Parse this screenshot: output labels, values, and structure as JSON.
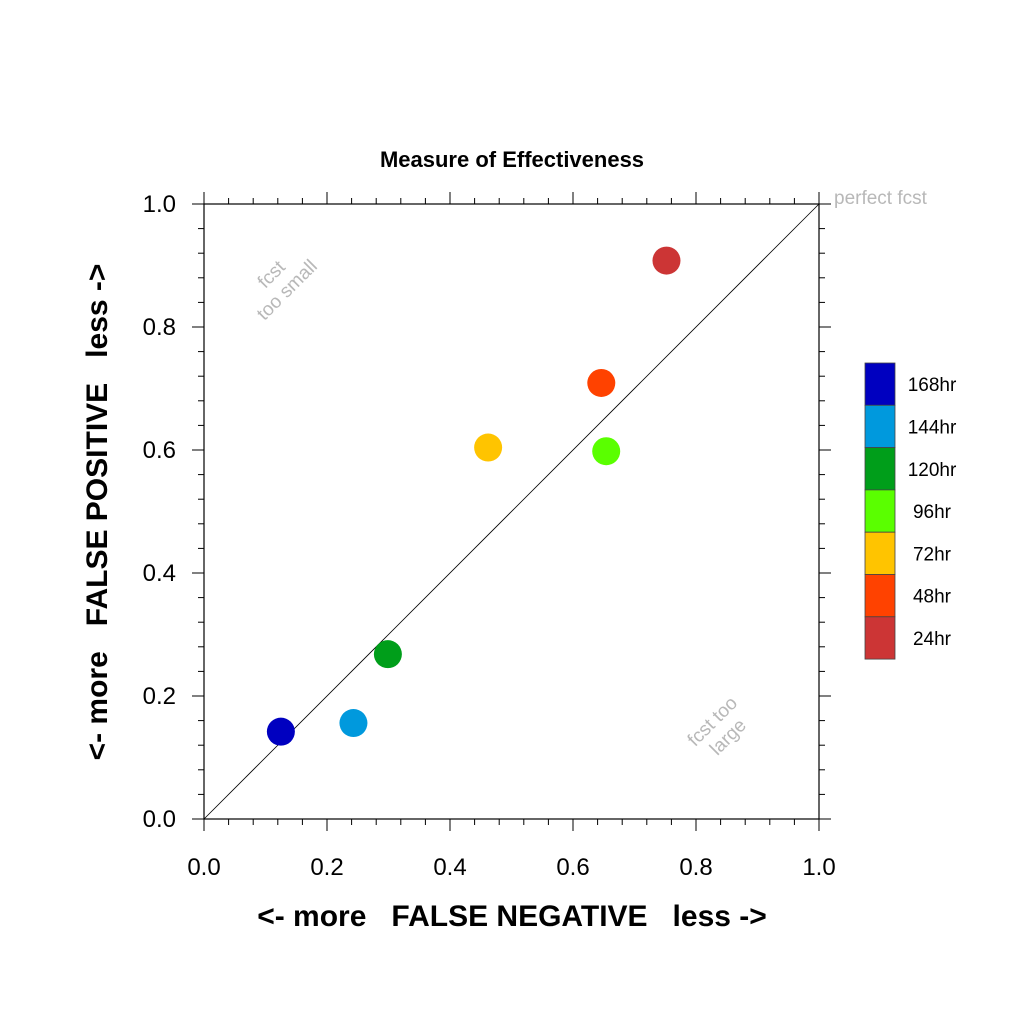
{
  "chart_data": {
    "type": "scatter",
    "title": "Measure of Effectiveness",
    "xlabel": "<- more   FALSE NEGATIVE   less ->",
    "ylabel": "<- more   FALSE POSITIVE   less ->",
    "xlim": [
      0,
      1
    ],
    "ylim": [
      0,
      1
    ],
    "xticks": [
      "0.0",
      "0.2",
      "0.4",
      "0.6",
      "0.8",
      "1.0"
    ],
    "yticks": [
      "0.0",
      "0.2",
      "0.4",
      "0.6",
      "0.8",
      "1.0"
    ],
    "grid": false,
    "reference_line": {
      "from": [
        0,
        0
      ],
      "to": [
        1,
        1
      ]
    },
    "annotations": {
      "perfect": "perfect fcst",
      "small_line1": "fcst",
      "small_line2": "too small",
      "large_line1": "fcst too",
      "large_line2": "large"
    },
    "series": [
      {
        "name": "168hr",
        "color": "#0000C0",
        "x": 0.125,
        "y": 0.142
      },
      {
        "name": "144hr",
        "color": "#0099DD",
        "x": 0.243,
        "y": 0.156
      },
      {
        "name": "120hr",
        "color": "#009E1A",
        "x": 0.299,
        "y": 0.268
      },
      {
        "name": "96hr",
        "color": "#5AFF00",
        "x": 0.654,
        "y": 0.598
      },
      {
        "name": "72hr",
        "color": "#FFC400",
        "x": 0.462,
        "y": 0.604
      },
      {
        "name": "48hr",
        "color": "#FF4200",
        "x": 0.646,
        "y": 0.709
      },
      {
        "name": "24hr",
        "color": "#CC3535",
        "x": 0.752,
        "y": 0.908
      }
    ],
    "legend": {
      "position": "right"
    }
  }
}
